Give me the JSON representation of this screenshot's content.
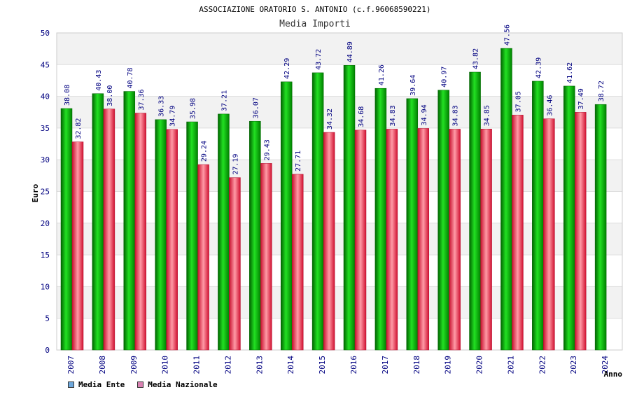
{
  "chart_data": {
    "type": "bar",
    "title": "ASSOCIAZIONE ORATORIO S. ANTONIO (c.f.96068590221)",
    "subtitle": "Media Importi",
    "xlabel": "Anno",
    "ylabel": "Euro",
    "ylim": [
      0,
      50
    ],
    "yticks": [
      0,
      5,
      10,
      15,
      20,
      25,
      30,
      35,
      40,
      45,
      50
    ],
    "categories": [
      "2007",
      "2008",
      "2009",
      "2010",
      "2011",
      "2012",
      "2013",
      "2014",
      "2015",
      "2016",
      "2017",
      "2018",
      "2019",
      "2020",
      "2021",
      "2022",
      "2023",
      "2024"
    ],
    "series": [
      {
        "name": "Media Ente",
        "values": [
          38.08,
          40.43,
          40.78,
          36.33,
          35.98,
          37.21,
          36.07,
          42.29,
          43.72,
          44.89,
          41.26,
          39.64,
          40.97,
          43.82,
          47.56,
          42.39,
          41.62,
          38.72
        ],
        "labels": [
          "38.08",
          "40.43",
          "40.78",
          "36.33",
          "35.98",
          "37.21",
          "36.07",
          "42.29",
          "43.72",
          "44.89",
          "41.26",
          "39.64",
          "40.97",
          "43.82",
          "47.56",
          "42.39",
          "41.62",
          "38.72"
        ],
        "color": "#00c000",
        "legend_color": "#6fa8dc"
      },
      {
        "name": "Media Nazionale",
        "values": [
          32.82,
          38.0,
          37.36,
          34.79,
          29.24,
          27.19,
          29.43,
          27.71,
          34.32,
          34.68,
          34.83,
          34.94,
          34.83,
          34.85,
          37.05,
          36.46,
          37.49,
          null
        ],
        "labels": [
          "32.82",
          "38.00",
          "37.36",
          "34.79",
          "29.24",
          "27.19",
          "29.43",
          "27.71",
          "34.32",
          "34.68",
          "34.83",
          "34.94",
          "34.83",
          "34.85",
          "37.05",
          "36.46",
          "37.49",
          ""
        ],
        "color": "#e8283c",
        "legend_color": "#d982b2"
      }
    ],
    "grid": true,
    "legend_position": "bottom-left"
  }
}
